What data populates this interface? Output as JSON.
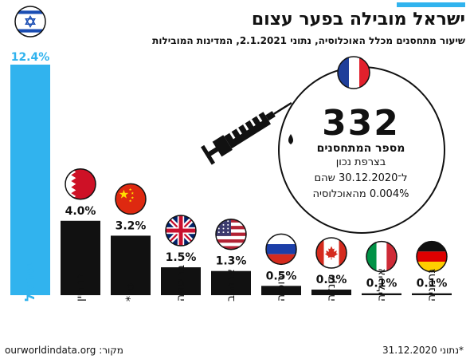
{
  "title": "ישראל מובילה בפער עצום",
  "subtitle": "שיעור מתחסנים מכלל האוכלוסיה, נתוני 2.1.2021, המדינות המובילות",
  "callout": {
    "number": "332",
    "label": "מספר המתחסנים",
    "line1": "בצרפת נכון",
    "line2": "ל־30.12.2020 שהם",
    "line3": "0.004% מהאוכלוסיה"
  },
  "source": "מקור: ourworldindata.org",
  "note": "*נתוני 31.12.2020",
  "colors": {
    "highlight": "#31b3ee",
    "bar": "#111111"
  },
  "chart_data": {
    "type": "bar",
    "title": "ישראל מובילה בפער עצום",
    "unit": "%",
    "ylim": [
      0,
      12.4
    ],
    "grid": false,
    "categories": [
      "ישראל",
      "בחריין",
      "סין*",
      "בריטניה",
      "ארה\"ב",
      "רוסיה",
      "קנדה",
      "איטליה",
      "גרמניה"
    ],
    "values": [
      12.4,
      4.0,
      3.2,
      1.5,
      1.3,
      0.5,
      0.3,
      0.1,
      0.1
    ],
    "labels": [
      "12.4%",
      "4.0%",
      "3.2%",
      "1.5%",
      "1.3%",
      "0.5%",
      "0.3%",
      "0.1%",
      "0.1%"
    ],
    "flags": [
      "israel-flag-icon",
      "bahrain-flag-icon",
      "china-flag-icon",
      "uk-flag-icon",
      "usa-flag-icon",
      "russia-flag-icon",
      "canada-flag-icon",
      "italy-flag-icon",
      "germany-flag-icon"
    ]
  }
}
